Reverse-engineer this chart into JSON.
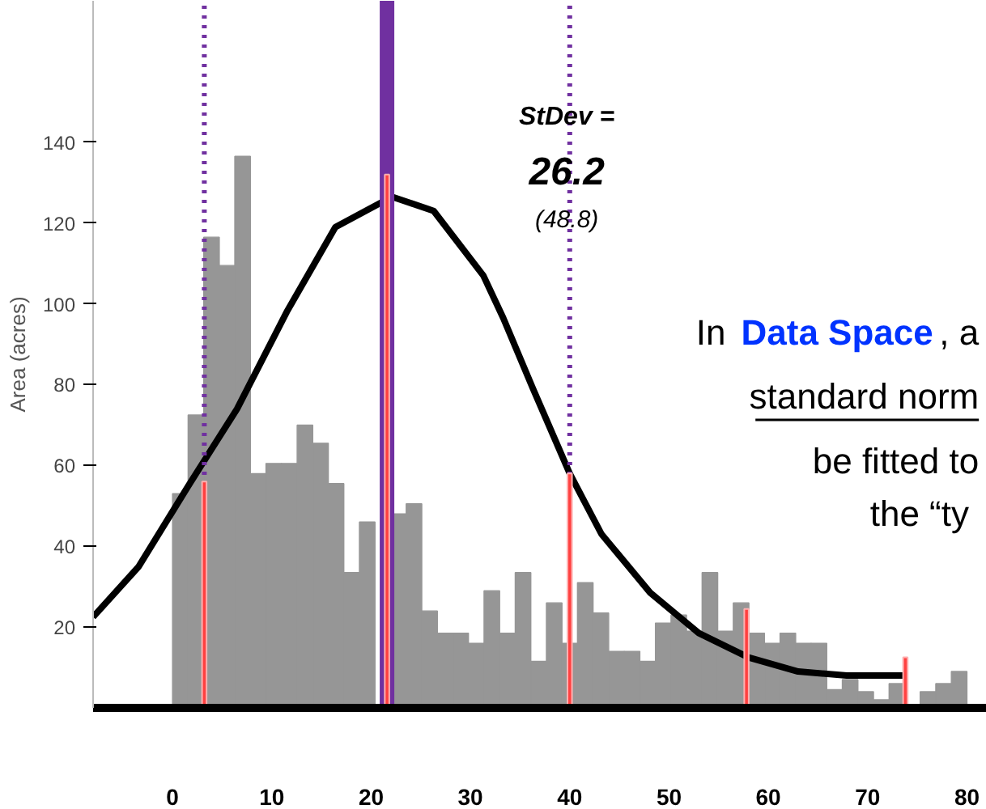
{
  "chart_data": {
    "type": "histogram",
    "ylabel": "Area (acres)",
    "xlim": [
      -8,
      82
    ],
    "xticks": [
      0,
      10,
      20,
      30,
      40,
      50,
      60,
      70,
      80
    ],
    "ylim": [
      0,
      175
    ],
    "yticks": [
      20,
      40,
      60,
      80,
      100,
      120,
      140
    ],
    "grid": false,
    "series": [
      {
        "color": "#969696",
        "bins": [
          0,
          1.57,
          3.14,
          4.71,
          6.27,
          7.84,
          9.41,
          10.98,
          12.55,
          14.12,
          15.69,
          17.25,
          18.82,
          20.39,
          21.96,
          23.53,
          25.1,
          26.67,
          28.24,
          29.8,
          31.37,
          32.94,
          34.51,
          36.08,
          37.65,
          39.22,
          40.78,
          42.35,
          43.92,
          45.49,
          47.06,
          48.63,
          50.2,
          51.76,
          53.33,
          54.9,
          56.47,
          58.04,
          59.61,
          61.18,
          62.75,
          64.31,
          65.88,
          67.45,
          69.02,
          70.59,
          72.16,
          73.73,
          75.29,
          76.86,
          78.43,
          80
        ],
        "values": [
          53,
          72.5,
          116.5,
          109.5,
          136.5,
          58,
          60.5,
          60.5,
          70,
          65.5,
          55.5,
          33.5,
          46,
          null,
          48,
          50.5,
          24,
          18.5,
          18.5,
          16,
          29,
          18.5,
          33.5,
          11.5,
          26,
          16,
          31,
          23.5,
          14,
          14,
          11.5,
          21,
          23,
          19,
          33.5,
          19,
          26,
          18.5,
          16,
          18.5,
          16,
          16,
          4.5,
          7,
          4,
          2,
          6,
          0,
          4,
          6,
          9
        ]
      },
      {
        "type": "bar",
        "color": "#ff4040",
        "x": [
          3.2,
          21.6,
          40,
          57.8,
          73.8
        ],
        "values": [
          56,
          132,
          58,
          24.5,
          12.5
        ]
      },
      {
        "type": "line",
        "color": "#000000",
        "line_style": "solid",
        "x": [
          -8,
          -3.4,
          1.6,
          6.5,
          11.5,
          16.4,
          22.1,
          26.3,
          31.3,
          33.3,
          36.3,
          40,
          43.2,
          48.1,
          53,
          58,
          63,
          67.9,
          73.7
        ],
        "values": [
          22.5,
          35,
          55,
          74,
          98,
          119,
          126.5,
          123,
          107,
          96.5,
          79,
          58,
          43,
          28.5,
          18.5,
          12.5,
          9,
          8,
          8
        ]
      }
    ],
    "ref_lines": [
      {
        "axis": "x",
        "value": 21.6,
        "color": "#7030a0",
        "line_style": "solid"
      },
      {
        "axis": "x",
        "value": 3.2,
        "color": "#7030a0",
        "line_style": "dotted"
      },
      {
        "axis": "x",
        "value": 40,
        "color": "#7030a0",
        "line_style": "dotted"
      }
    ],
    "annotations": [
      "StDev =",
      "26.2",
      "(48.8)",
      "In",
      "Data Space",
      ", a",
      "standard norm",
      "be fitted to",
      "the  “ty"
    ]
  }
}
